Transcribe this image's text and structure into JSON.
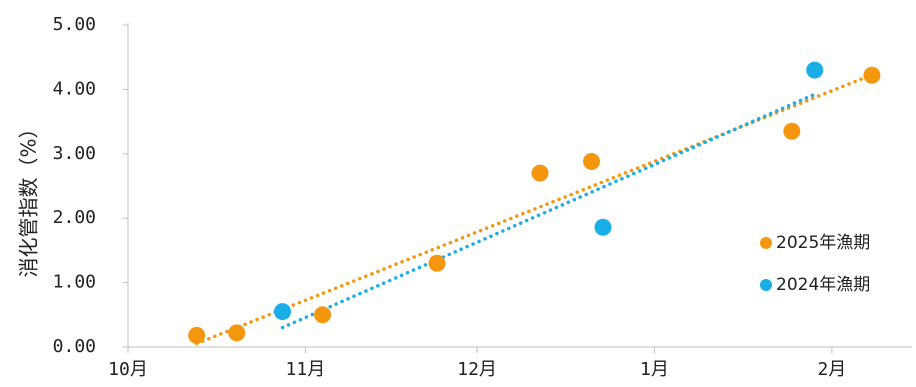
{
  "chart_data": {
    "type": "scatter",
    "title": "",
    "xlabel": "",
    "ylabel": "消化管指数（%）",
    "ylim": [
      0,
      5
    ],
    "yticks": [
      0,
      1,
      2,
      3,
      4,
      5
    ],
    "ytick_labels": [
      "0.00",
      "1.00",
      "2.00",
      "3.00",
      "4.00",
      "5.00"
    ],
    "xlim": [
      "2025-10-01",
      "2026-02-15"
    ],
    "xticks": [
      "2025-10-01",
      "2025-11-01",
      "2025-12-01",
      "2026-01-01",
      "2026-02-01"
    ],
    "xtick_labels": [
      "10月",
      "11月",
      "12月",
      "1月",
      "2月"
    ],
    "grid": false,
    "legend_position": "right",
    "trendline": "linear, dotted",
    "series": [
      {
        "name": "2025年漁期",
        "color": "#F5960F",
        "points": [
          {
            "x": "2025-10-13",
            "y": 0.18
          },
          {
            "x": "2025-10-20",
            "y": 0.22
          },
          {
            "x": "2025-11-04",
            "y": 0.5
          },
          {
            "x": "2025-11-24",
            "y": 1.3
          },
          {
            "x": "2025-12-12",
            "y": 2.7
          },
          {
            "x": "2025-12-21",
            "y": 2.88
          },
          {
            "x": "2026-01-25",
            "y": 3.35
          },
          {
            "x": "2026-02-08",
            "y": 4.22
          }
        ]
      },
      {
        "name": "2024年漁期",
        "color": "#1AAEE8",
        "points": [
          {
            "x": "2025-10-28",
            "y": 0.55
          },
          {
            "x": "2025-12-23",
            "y": 1.86
          },
          {
            "x": "2026-01-29",
            "y": 4.3
          }
        ]
      }
    ]
  }
}
